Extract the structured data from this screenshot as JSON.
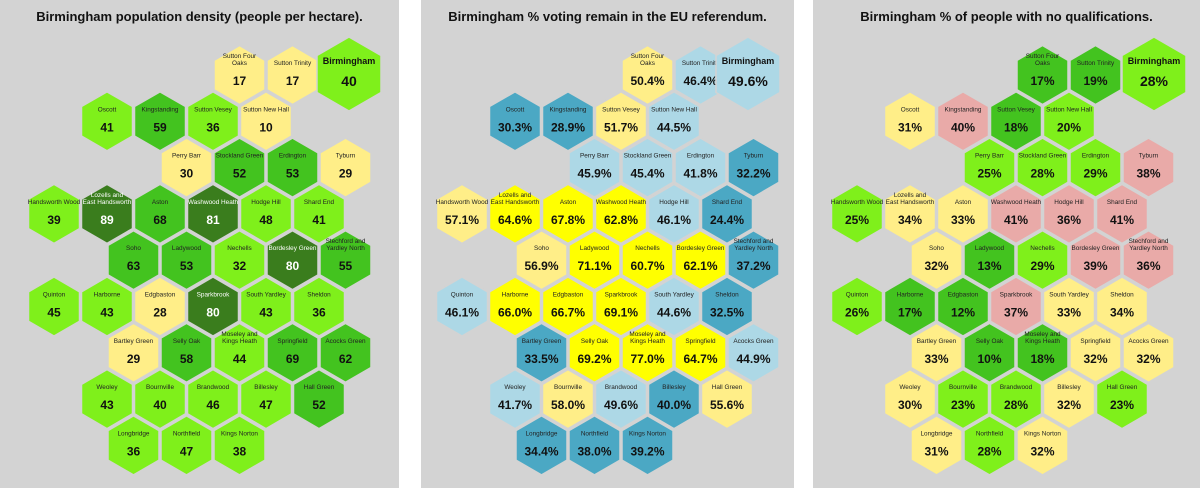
{
  "palette": {
    "yellow": "#ffee88",
    "light_green": "#7ff01b",
    "mid_green": "#43c31f",
    "dark_green": "#3a7d1d",
    "bright_yellow": "#ffff00",
    "light_blue": "#add8e6",
    "teal": "#4ba8c4",
    "pale_yellow": "#ffee88",
    "pink": "#e9aaa8",
    "hex_border": "#d3d3d3"
  },
  "maps": [
    {
      "title": "Birmingham population density (people per hectare).",
      "overall": {
        "name": "Birmingham",
        "value": "40",
        "color": "light_green"
      },
      "wards": [
        {
          "name": "Sutton Four Oaks",
          "value": "17",
          "color": "yellow"
        },
        {
          "name": "Sutton Trinity",
          "value": "17",
          "color": "yellow"
        },
        {
          "name": "Oscott",
          "value": "41",
          "color": "light_green"
        },
        {
          "name": "Kingstanding",
          "value": "59",
          "color": "mid_green"
        },
        {
          "name": "Sutton Vesey",
          "value": "36",
          "color": "light_green"
        },
        {
          "name": "Sutton New Hall",
          "value": "10",
          "color": "yellow"
        },
        {
          "name": "Perry Barr",
          "value": "30",
          "color": "yellow"
        },
        {
          "name": "Stockland Green",
          "value": "52",
          "color": "mid_green"
        },
        {
          "name": "Erdington",
          "value": "53",
          "color": "mid_green"
        },
        {
          "name": "Tyburn",
          "value": "29",
          "color": "yellow"
        },
        {
          "name": "Handsworth Wood",
          "value": "39",
          "color": "light_green"
        },
        {
          "name": "Lozells and East Handsworth",
          "value": "89",
          "color": "dark_green"
        },
        {
          "name": "Aston",
          "value": "68",
          "color": "mid_green"
        },
        {
          "name": "Washwood Heath",
          "value": "81",
          "color": "dark_green"
        },
        {
          "name": "Hodge Hill",
          "value": "48",
          "color": "light_green"
        },
        {
          "name": "Shard End",
          "value": "41",
          "color": "light_green"
        },
        {
          "name": "Soho",
          "value": "63",
          "color": "mid_green"
        },
        {
          "name": "Ladywood",
          "value": "53",
          "color": "mid_green"
        },
        {
          "name": "Nechells",
          "value": "32",
          "color": "light_green"
        },
        {
          "name": "Bordesley Green",
          "value": "80",
          "color": "dark_green"
        },
        {
          "name": "Stechford and Yardley North",
          "value": "55",
          "color": "mid_green"
        },
        {
          "name": "Quinton",
          "value": "45",
          "color": "light_green"
        },
        {
          "name": "Harborne",
          "value": "43",
          "color": "light_green"
        },
        {
          "name": "Edgbaston",
          "value": "28",
          "color": "yellow"
        },
        {
          "name": "Sparkbrook",
          "value": "80",
          "color": "dark_green"
        },
        {
          "name": "South Yardley",
          "value": "43",
          "color": "light_green"
        },
        {
          "name": "Sheldon",
          "value": "36",
          "color": "light_green"
        },
        {
          "name": "Bartley Green",
          "value": "29",
          "color": "yellow"
        },
        {
          "name": "Selly Oak",
          "value": "58",
          "color": "mid_green"
        },
        {
          "name": "Moseley and Kings Heath",
          "value": "44",
          "color": "light_green"
        },
        {
          "name": "Springfield",
          "value": "69",
          "color": "mid_green"
        },
        {
          "name": "Acocks Green",
          "value": "62",
          "color": "mid_green"
        },
        {
          "name": "Weoley",
          "value": "43",
          "color": "light_green"
        },
        {
          "name": "Bournville",
          "value": "40",
          "color": "light_green"
        },
        {
          "name": "Brandwood",
          "value": "46",
          "color": "light_green"
        },
        {
          "name": "Billesley",
          "value": "47",
          "color": "light_green"
        },
        {
          "name": "Hall Green",
          "value": "52",
          "color": "mid_green"
        },
        {
          "name": "Longbridge",
          "value": "36",
          "color": "light_green"
        },
        {
          "name": "Northfield",
          "value": "47",
          "color": "light_green"
        },
        {
          "name": "Kings Norton",
          "value": "38",
          "color": "light_green"
        }
      ]
    },
    {
      "title": "Birmingham % voting remain in the EU referendum.",
      "overall": {
        "name": "Birmingham",
        "value": "49.6%",
        "color": "light_blue"
      },
      "wards": [
        {
          "name": "Sutton Four Oaks",
          "value": "50.4%",
          "color": "pale_yellow"
        },
        {
          "name": "Sutton Trinity",
          "value": "46.4%",
          "color": "light_blue"
        },
        {
          "name": "Oscott",
          "value": "30.3%",
          "color": "teal"
        },
        {
          "name": "Kingstanding",
          "value": "28.9%",
          "color": "teal"
        },
        {
          "name": "Sutton Vesey",
          "value": "51.7%",
          "color": "pale_yellow"
        },
        {
          "name": "Sutton New Hall",
          "value": "44.5%",
          "color": "light_blue"
        },
        {
          "name": "Perry Barr",
          "value": "45.9%",
          "color": "light_blue"
        },
        {
          "name": "Stockland Green",
          "value": "45.4%",
          "color": "light_blue"
        },
        {
          "name": "Erdington",
          "value": "41.8%",
          "color": "light_blue"
        },
        {
          "name": "Tyburn",
          "value": "32.2%",
          "color": "teal"
        },
        {
          "name": "Handsworth Wood",
          "value": "57.1%",
          "color": "pale_yellow"
        },
        {
          "name": "Lozells and East Handsworth",
          "value": "64.6%",
          "color": "bright_yellow"
        },
        {
          "name": "Aston",
          "value": "67.8%",
          "color": "bright_yellow"
        },
        {
          "name": "Washwood Heath",
          "value": "62.8%",
          "color": "bright_yellow"
        },
        {
          "name": "Hodge Hill",
          "value": "46.1%",
          "color": "light_blue"
        },
        {
          "name": "Shard End",
          "value": "24.4%",
          "color": "teal"
        },
        {
          "name": "Soho",
          "value": "56.9%",
          "color": "pale_yellow"
        },
        {
          "name": "Ladywood",
          "value": "71.1%",
          "color": "bright_yellow"
        },
        {
          "name": "Nechells",
          "value": "60.7%",
          "color": "bright_yellow"
        },
        {
          "name": "Bordesley Green",
          "value": "62.1%",
          "color": "bright_yellow"
        },
        {
          "name": "Stechford and Yardley North",
          "value": "37.2%",
          "color": "teal"
        },
        {
          "name": "Quinton",
          "value": "46.1%",
          "color": "light_blue"
        },
        {
          "name": "Harborne",
          "value": "66.0%",
          "color": "bright_yellow"
        },
        {
          "name": "Edgbaston",
          "value": "66.7%",
          "color": "bright_yellow"
        },
        {
          "name": "Sparkbrook",
          "value": "69.1%",
          "color": "bright_yellow"
        },
        {
          "name": "South Yardley",
          "value": "44.6%",
          "color": "light_blue"
        },
        {
          "name": "Sheldon",
          "value": "32.5%",
          "color": "teal"
        },
        {
          "name": "Bartley Green",
          "value": "33.5%",
          "color": "teal"
        },
        {
          "name": "Selly Oak",
          "value": "69.2%",
          "color": "bright_yellow"
        },
        {
          "name": "Moseley and Kings Heath",
          "value": "77.0%",
          "color": "bright_yellow"
        },
        {
          "name": "Springfield",
          "value": "64.7%",
          "color": "bright_yellow"
        },
        {
          "name": "Acocks Green",
          "value": "44.9%",
          "color": "light_blue"
        },
        {
          "name": "Weoley",
          "value": "41.7%",
          "color": "light_blue"
        },
        {
          "name": "Bournville",
          "value": "58.0%",
          "color": "pale_yellow"
        },
        {
          "name": "Brandwood",
          "value": "49.6%",
          "color": "light_blue"
        },
        {
          "name": "Billesley",
          "value": "40.0%",
          "color": "teal"
        },
        {
          "name": "Hall Green",
          "value": "55.6%",
          "color": "pale_yellow"
        },
        {
          "name": "Longbridge",
          "value": "34.4%",
          "color": "teal"
        },
        {
          "name": "Northfield",
          "value": "38.0%",
          "color": "teal"
        },
        {
          "name": "Kings Norton",
          "value": "39.2%",
          "color": "teal"
        }
      ]
    },
    {
      "title": "Birmingham % of people with no qualifications.",
      "overall": {
        "name": "Birmingham",
        "value": "28%",
        "color": "light_green"
      },
      "wards": [
        {
          "name": "Sutton Four Oaks",
          "value": "17%",
          "color": "mid_green"
        },
        {
          "name": "Sutton Trinity",
          "value": "19%",
          "color": "mid_green"
        },
        {
          "name": "Oscott",
          "value": "31%",
          "color": "yellow"
        },
        {
          "name": "Kingstanding",
          "value": "40%",
          "color": "pink"
        },
        {
          "name": "Sutton Vesey",
          "value": "18%",
          "color": "mid_green"
        },
        {
          "name": "Sutton New Hall",
          "value": "20%",
          "color": "light_green"
        },
        {
          "name": "Perry Barr",
          "value": "25%",
          "color": "light_green"
        },
        {
          "name": "Stockland Green",
          "value": "28%",
          "color": "light_green"
        },
        {
          "name": "Erdington",
          "value": "29%",
          "color": "light_green"
        },
        {
          "name": "Tyburn",
          "value": "38%",
          "color": "pink"
        },
        {
          "name": "Handsworth Wood",
          "value": "25%",
          "color": "light_green"
        },
        {
          "name": "Lozells and East Handsworth",
          "value": "34%",
          "color": "yellow"
        },
        {
          "name": "Aston",
          "value": "33%",
          "color": "yellow"
        },
        {
          "name": "Washwood Heath",
          "value": "41%",
          "color": "pink"
        },
        {
          "name": "Hodge Hill",
          "value": "36%",
          "color": "pink"
        },
        {
          "name": "Shard End",
          "value": "41%",
          "color": "pink"
        },
        {
          "name": "Soho",
          "value": "32%",
          "color": "yellow"
        },
        {
          "name": "Ladywood",
          "value": "13%",
          "color": "mid_green"
        },
        {
          "name": "Nechells",
          "value": "29%",
          "color": "light_green"
        },
        {
          "name": "Bordesley Green",
          "value": "39%",
          "color": "pink"
        },
        {
          "name": "Stechford and Yardley North",
          "value": "36%",
          "color": "pink"
        },
        {
          "name": "Quinton",
          "value": "26%",
          "color": "light_green"
        },
        {
          "name": "Harborne",
          "value": "17%",
          "color": "mid_green"
        },
        {
          "name": "Edgbaston",
          "value": "12%",
          "color": "mid_green"
        },
        {
          "name": "Sparkbrook",
          "value": "37%",
          "color": "pink"
        },
        {
          "name": "South Yardley",
          "value": "33%",
          "color": "yellow"
        },
        {
          "name": "Sheldon",
          "value": "34%",
          "color": "yellow"
        },
        {
          "name": "Bartley Green",
          "value": "33%",
          "color": "yellow"
        },
        {
          "name": "Selly Oak",
          "value": "10%",
          "color": "mid_green"
        },
        {
          "name": "Moseley and Kings Heath",
          "value": "18%",
          "color": "mid_green"
        },
        {
          "name": "Springfield",
          "value": "32%",
          "color": "yellow"
        },
        {
          "name": "Acocks Green",
          "value": "32%",
          "color": "yellow"
        },
        {
          "name": "Weoley",
          "value": "30%",
          "color": "yellow"
        },
        {
          "name": "Bournville",
          "value": "23%",
          "color": "light_green"
        },
        {
          "name": "Brandwood",
          "value": "28%",
          "color": "light_green"
        },
        {
          "name": "Billesley",
          "value": "32%",
          "color": "yellow"
        },
        {
          "name": "Hall Green",
          "value": "23%",
          "color": "light_green"
        },
        {
          "name": "Longbridge",
          "value": "31%",
          "color": "yellow"
        },
        {
          "name": "Northfield",
          "value": "28%",
          "color": "light_green"
        },
        {
          "name": "Kings Norton",
          "value": "32%",
          "color": "yellow"
        }
      ]
    }
  ]
}
